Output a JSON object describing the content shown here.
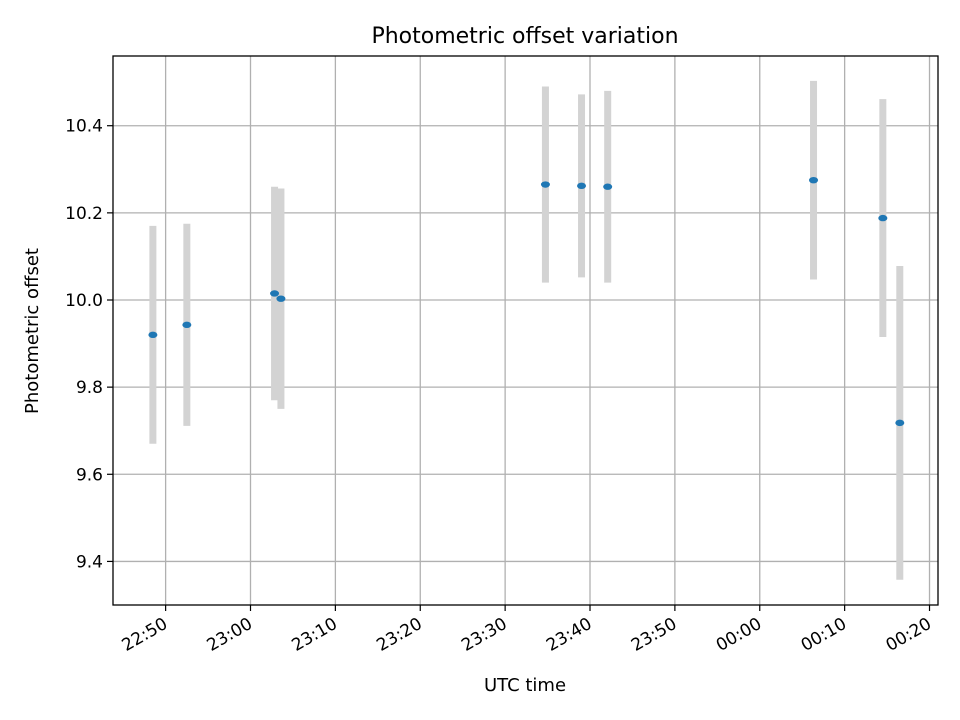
{
  "chart_data": {
    "type": "scatter",
    "title": "Photometric offset variation",
    "xlabel": "UTC time",
    "ylabel": "Photometric offset",
    "x_tick_labels": [
      "22:50",
      "23:00",
      "23:10",
      "23:20",
      "23:30",
      "23:40",
      "23:50",
      "00:00",
      "00:10",
      "00:20"
    ],
    "y_tick_labels": [
      "9.4",
      "9.6",
      "9.8",
      "10.0",
      "10.2",
      "10.4"
    ],
    "y_ticks": [
      9.4,
      9.6,
      9.8,
      10.0,
      10.2,
      10.4
    ],
    "ylim": [
      9.3,
      10.56
    ],
    "xlim": [
      "22:43:48",
      "00:21:00"
    ],
    "x_ticks": [
      "22:50:00",
      "23:00:00",
      "23:10:00",
      "23:20:00",
      "23:30:00",
      "23:40:00",
      "23:50:00",
      "00:00:00",
      "00:10:00",
      "00:20:00"
    ],
    "grid": true,
    "point_color": "#1f77b4",
    "errorbar_color": "#d3d3d3",
    "points": [
      {
        "time": "22:48:30",
        "y": 9.92,
        "yerr": 0.25
      },
      {
        "time": "22:52:30",
        "y": 9.943,
        "yerr": 0.232
      },
      {
        "time": "23:02:50",
        "y": 10.015,
        "yerr": 0.245
      },
      {
        "time": "23:03:35",
        "y": 10.003,
        "yerr": 0.253
      },
      {
        "time": "23:34:45",
        "y": 10.265,
        "yerr": 0.225
      },
      {
        "time": "23:39:00",
        "y": 10.262,
        "yerr": 0.21
      },
      {
        "time": "23:42:05",
        "y": 10.26,
        "yerr": 0.22
      },
      {
        "time": "00:06:20",
        "y": 10.275,
        "yerr": 0.228
      },
      {
        "time": "00:14:30",
        "y": 10.188,
        "yerr": 0.273
      },
      {
        "time": "00:16:30",
        "y": 9.718,
        "yerr": 0.36
      }
    ]
  }
}
